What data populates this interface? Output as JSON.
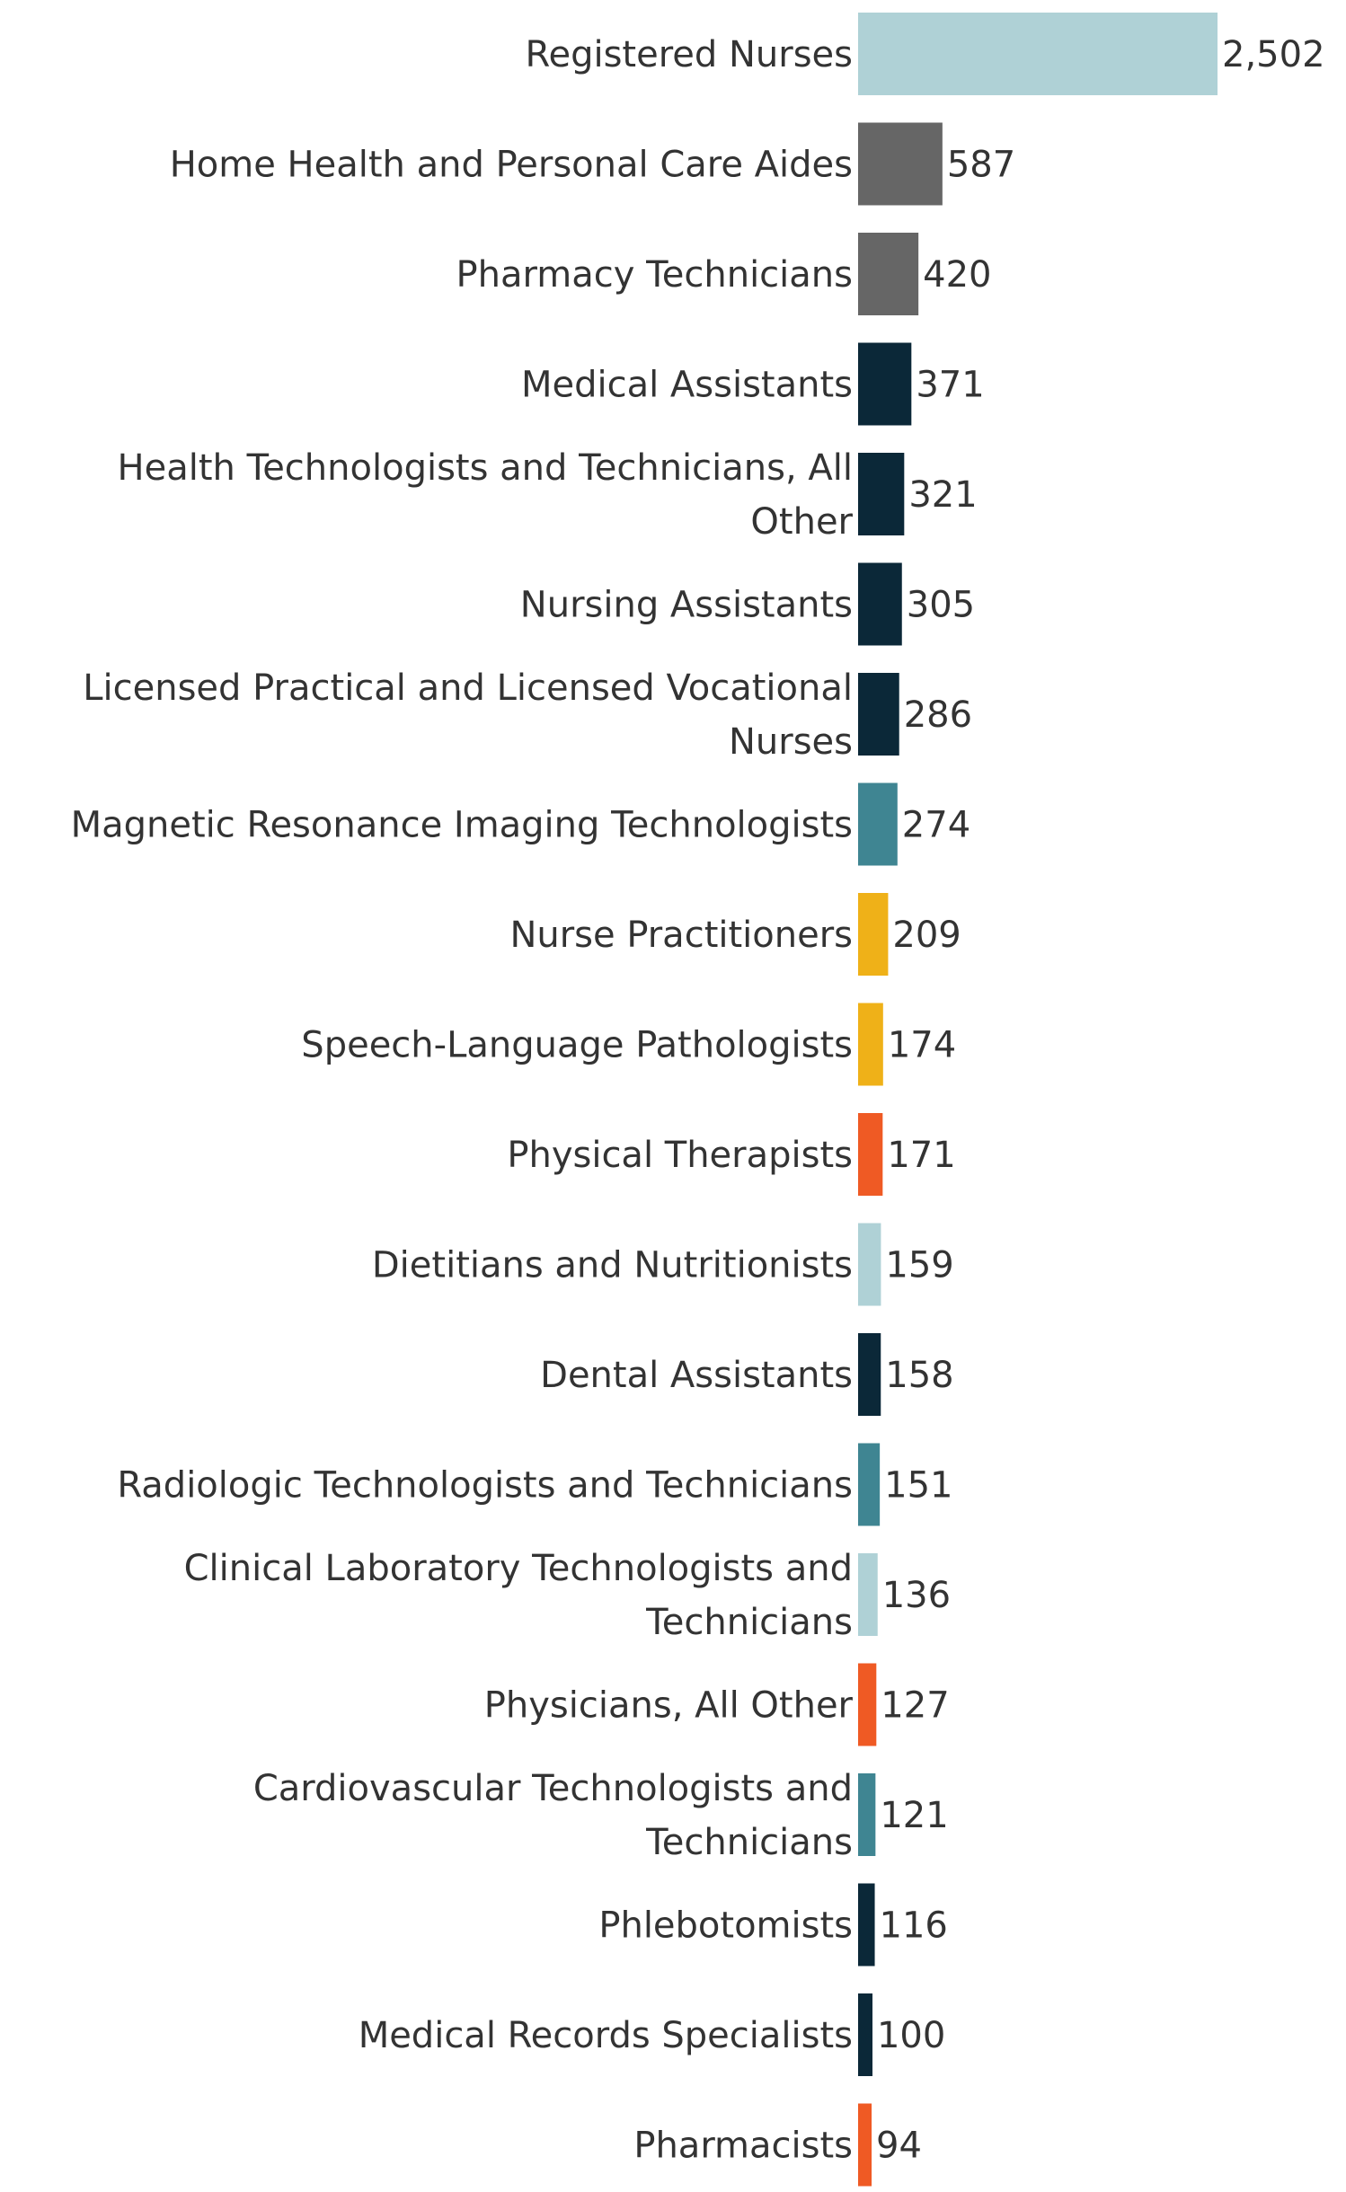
{
  "chart_data": {
    "type": "bar",
    "orientation": "horizontal",
    "title": "",
    "xlabel": "",
    "ylabel": "",
    "grid": false,
    "legend": "none",
    "categories": [
      "Registered Nurses",
      "Home Health and Personal Care Aides",
      "Pharmacy Technicians",
      "Medical Assistants",
      "Health Technologists and Technicians, All Other",
      "Nursing Assistants",
      "Licensed Practical and Licensed Vocational Nurses",
      "Magnetic Resonance Imaging Technologists",
      "Nurse Practitioners",
      "Speech-Language Pathologists",
      "Physical Therapists",
      "Dietitians and Nutritionists",
      "Dental Assistants",
      "Radiologic Technologists and Technicians",
      "Clinical Laboratory Technologists and Technicians",
      "Physicians, All Other",
      "Cardiovascular Technologists and Technicians",
      "Phlebotomists",
      "Medical Records Specialists",
      "Pharmacists"
    ],
    "label_lines": [
      [
        "Registered Nurses"
      ],
      [
        "Home Health and Personal Care Aides"
      ],
      [
        "Pharmacy Technicians"
      ],
      [
        "Medical Assistants"
      ],
      [
        "Health Technologists and Technicians, All",
        "Other"
      ],
      [
        "Nursing Assistants"
      ],
      [
        "Licensed Practical and Licensed Vocational",
        "Nurses"
      ],
      [
        "Magnetic Resonance Imaging Technologists"
      ],
      [
        "Nurse Practitioners"
      ],
      [
        "Speech-Language Pathologists"
      ],
      [
        "Physical Therapists"
      ],
      [
        "Dietitians and Nutritionists"
      ],
      [
        "Dental Assistants"
      ],
      [
        "Radiologic Technologists and Technicians"
      ],
      [
        "Clinical Laboratory Technologists and",
        "Technicians"
      ],
      [
        "Physicians, All Other"
      ],
      [
        "Cardiovascular Technologists and",
        "Technicians"
      ],
      [
        "Phlebotomists"
      ],
      [
        "Medical Records Specialists"
      ],
      [
        "Pharmacists"
      ]
    ],
    "values": [
      2502,
      587,
      420,
      371,
      321,
      305,
      286,
      274,
      209,
      174,
      171,
      159,
      158,
      151,
      136,
      127,
      121,
      116,
      100,
      94
    ],
    "value_labels": [
      "2,502",
      "587",
      "420",
      "371",
      "321",
      "305",
      "286",
      "274",
      "209",
      "174",
      "171",
      "159",
      "158",
      "151",
      "136",
      "127",
      "121",
      "116",
      "100",
      "94"
    ],
    "colors": [
      "#afd1d6",
      "#666666",
      "#666666",
      "#0b2838",
      "#0b2838",
      "#0b2838",
      "#0b2838",
      "#3f8592",
      "#efb118",
      "#efb118",
      "#ef5a24",
      "#afd1d6",
      "#0b2838",
      "#3f8592",
      "#afd1d6",
      "#ef5a24",
      "#3f8592",
      "#0b2838",
      "#0b2838",
      "#ef5a24"
    ],
    "xlim": [
      0,
      2502
    ]
  }
}
